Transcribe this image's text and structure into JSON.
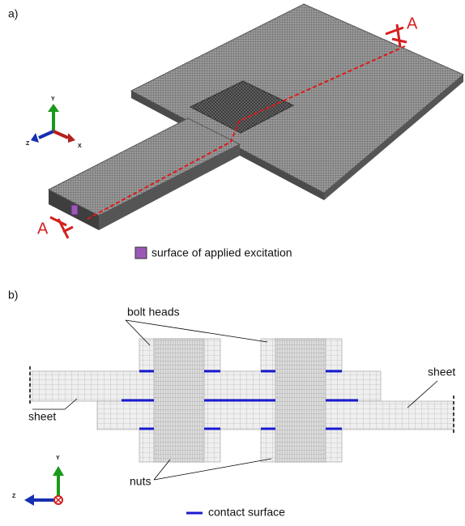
{
  "panel_a": {
    "label": "a)",
    "section_marks": [
      "A",
      "A"
    ],
    "legend": "surface of applied excitation",
    "axes": [
      "Y",
      "Z",
      "X"
    ]
  },
  "panel_b": {
    "label": "b)",
    "callouts": [
      "bolt heads",
      "sheet",
      "sheet",
      "nuts"
    ],
    "legend": "contact surface",
    "axes": [
      "Y",
      "Z"
    ]
  }
}
